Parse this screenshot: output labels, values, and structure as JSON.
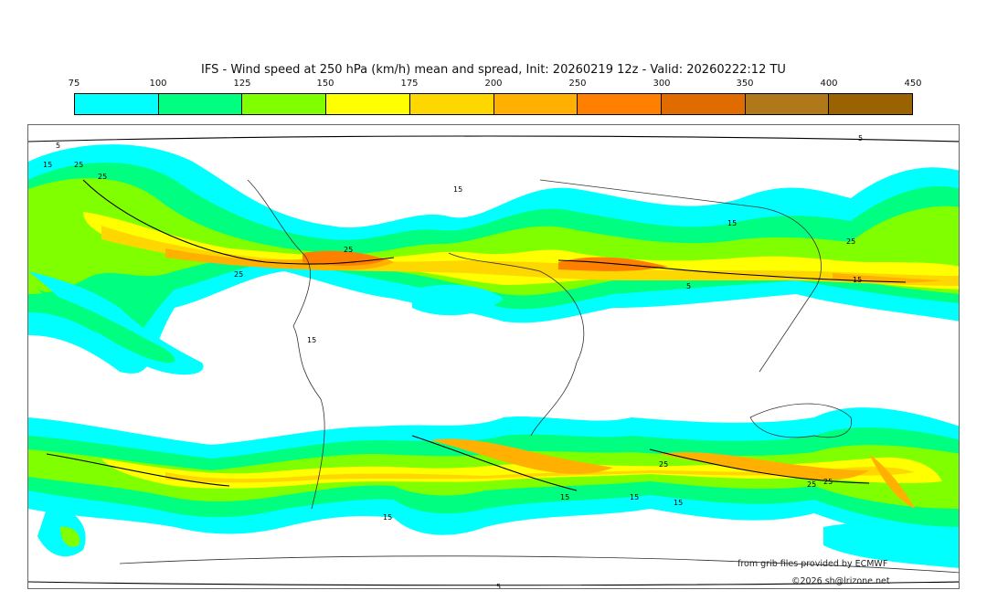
{
  "title": "IFS - Wind speed at 250 hPa (km/h) mean and spread, Init: 20260219 12z - Valid: 20260222:12 TU",
  "colorbar": {
    "ticks": [
      "75",
      "100",
      "125",
      "150",
      "175",
      "200",
      "250",
      "300",
      "350",
      "400",
      "450"
    ],
    "colors": [
      "#00ffff",
      "#00ff80",
      "#80ff00",
      "#ffff00",
      "#ffd700",
      "#ffb000",
      "#ff8000",
      "#e06c00",
      "#b07818",
      "#9a6200"
    ]
  },
  "contour_labels": [
    "15",
    "25",
    "25",
    "25",
    "25",
    "15",
    "15",
    "15",
    "25",
    "5",
    "15",
    "15",
    "15",
    "15",
    "25",
    "25",
    "25",
    "15",
    "5",
    "5",
    "5"
  ],
  "credits": {
    "source": "from grib files provided by ECMWF",
    "copyright": "©2026 sh@lrizone.net"
  }
}
